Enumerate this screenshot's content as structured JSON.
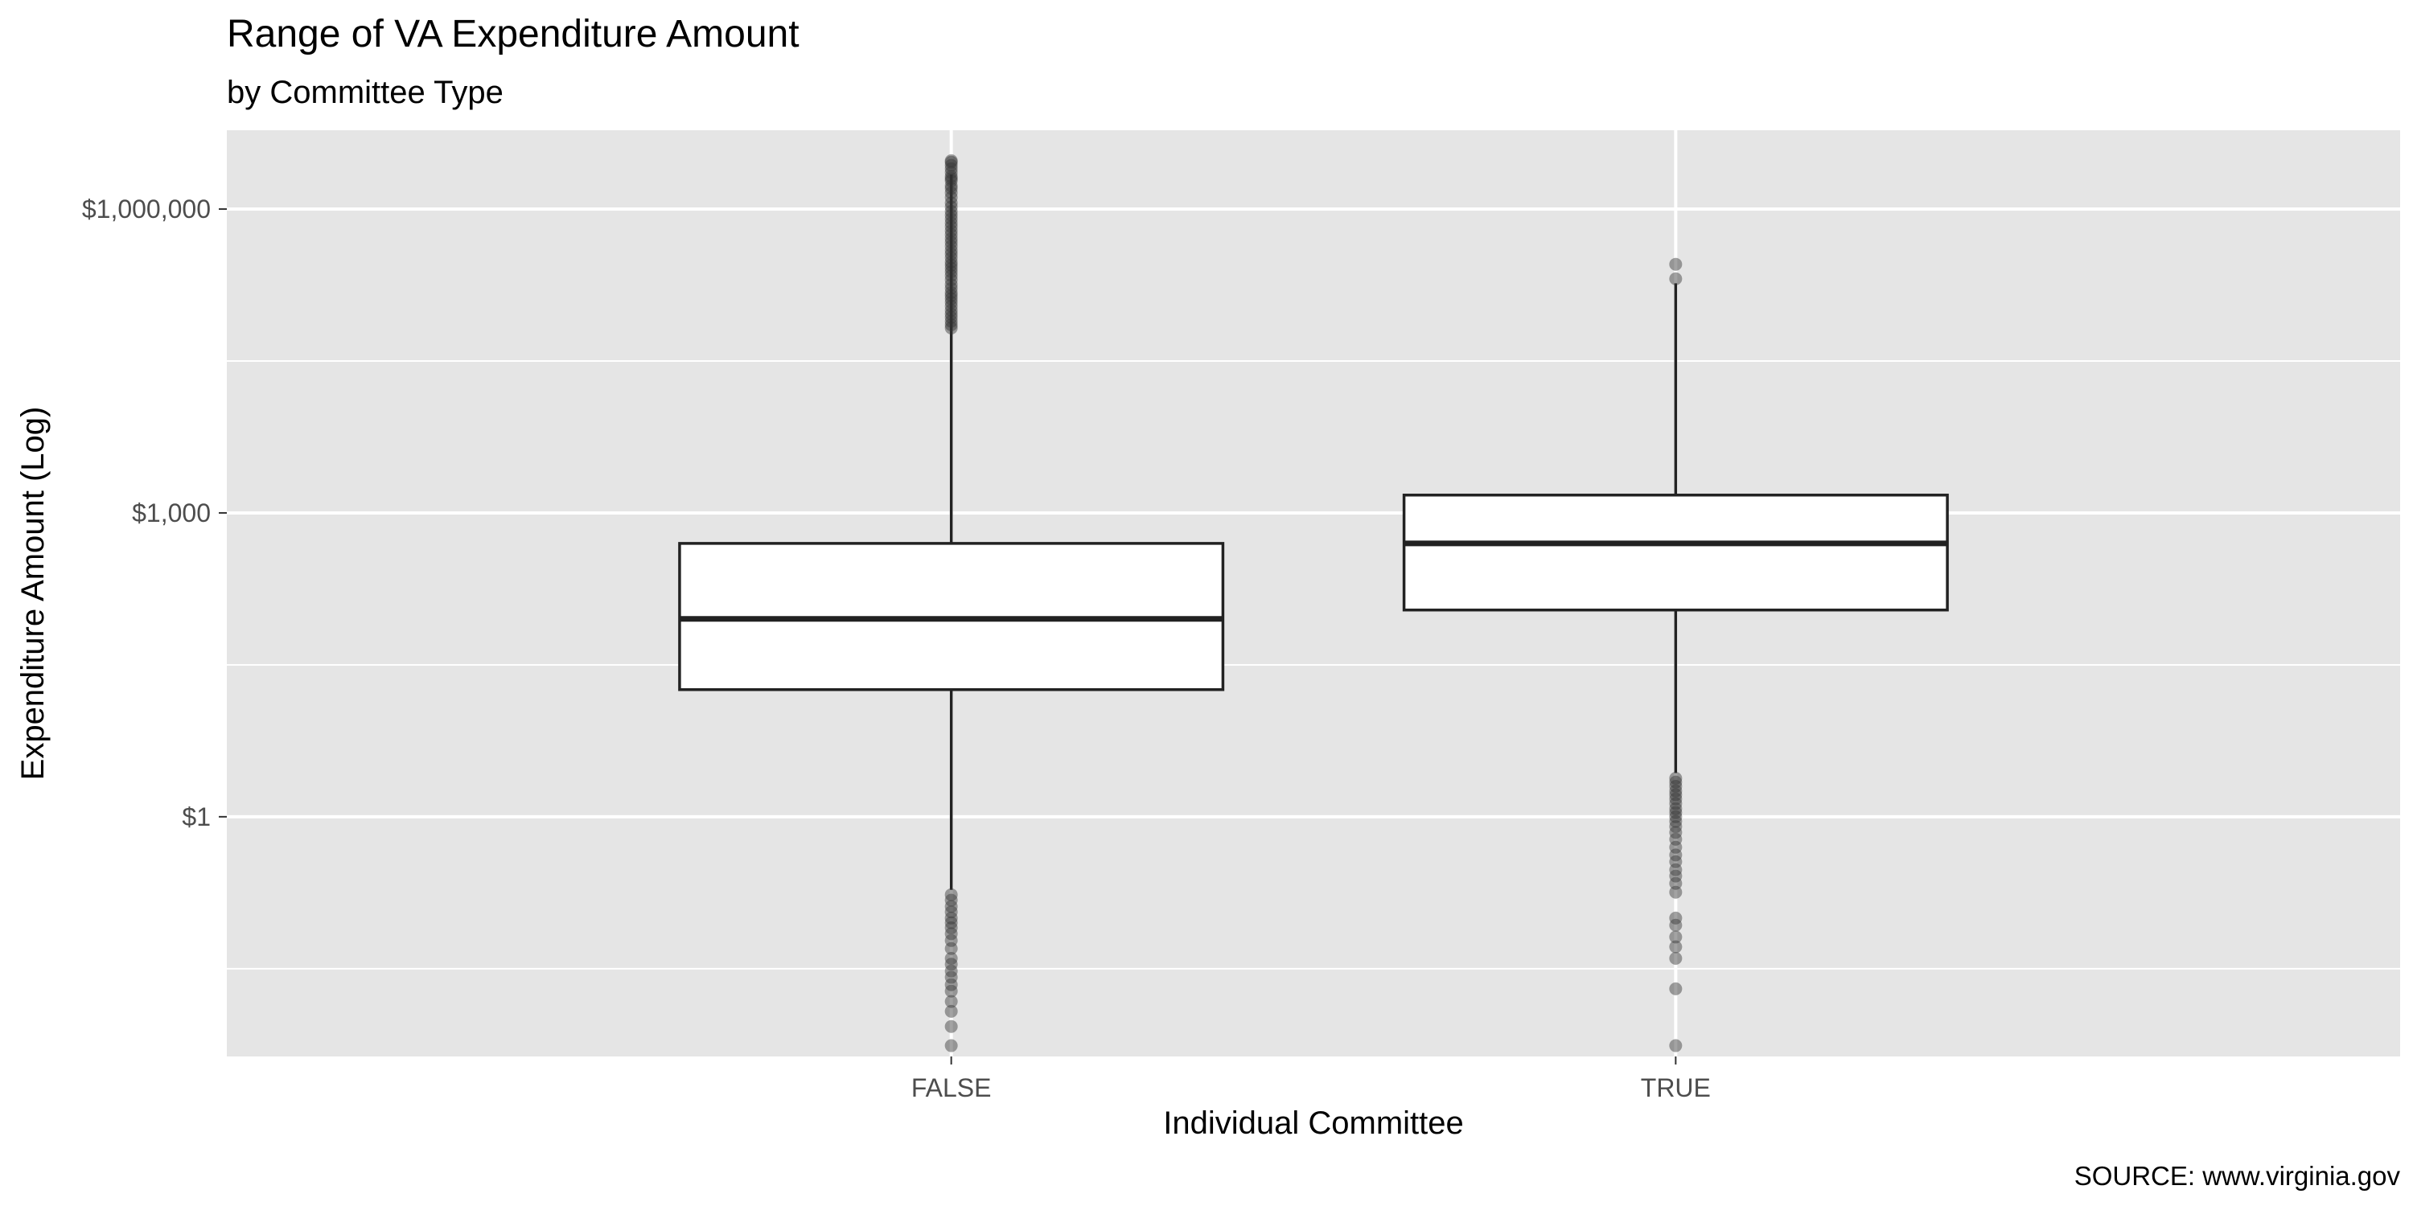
{
  "chart_data": {
    "type": "boxplot",
    "title": "Range of VA Expenditure Amount",
    "subtitle": "by Committee Type",
    "xlabel": "Individual Committee",
    "ylabel": "Expenditure Amount (Log)",
    "caption": "SOURCE: www.virginia.gov",
    "y_scale": "log10",
    "ylim": [
      0.0043,
      6000000
    ],
    "y_ticks": [
      {
        "value": 1,
        "label": "$1"
      },
      {
        "value": 1000,
        "label": "$1,000"
      },
      {
        "value": 1000000,
        "label": "$1,000,000"
      }
    ],
    "y_minor_ticks": [
      0.0316,
      31.6,
      31600
    ],
    "categories": [
      "FALSE",
      "TRUE"
    ],
    "boxes": [
      {
        "category": "FALSE",
        "whisker_low": 0.19,
        "q1": 18,
        "median": 90,
        "q3": 500,
        "whisker_high": 2200000,
        "outliers_high": [
          3000000,
          2900000,
          2700000,
          2500000,
          2300000,
          2100000,
          2000000,
          1900000,
          1700000,
          1600000,
          1450000,
          1300000,
          1150000,
          1050000,
          950000,
          870000,
          800000,
          730000,
          670000,
          610000,
          560000,
          510000,
          470000,
          430000,
          390000,
          360000,
          330000,
          300000,
          280000,
          260000,
          240000,
          220000,
          200000,
          180000,
          165000,
          150000,
          140000,
          130000,
          120000,
          110000,
          100000,
          92000,
          85000,
          78000,
          72000,
          67000
        ],
        "outliers_low": [
          0.17,
          0.15,
          0.13,
          0.115,
          0.1,
          0.09,
          0.08,
          0.07,
          0.06,
          0.05,
          0.04,
          0.035,
          0.03,
          0.026,
          0.022,
          0.019,
          0.015,
          0.012,
          0.0085,
          0.0055
        ]
      },
      {
        "category": "TRUE",
        "whisker_low": 2.7,
        "q1": 110,
        "median": 500,
        "q3": 1500,
        "whisker_high": 185000,
        "outliers_high": [
          285000,
          205000
        ],
        "outliers_low": [
          2.4,
          2.2,
          2.0,
          1.8,
          1.65,
          1.5,
          1.35,
          1.2,
          1.1,
          1.0,
          0.9,
          0.8,
          0.7,
          0.6,
          0.5,
          0.42,
          0.36,
          0.3,
          0.26,
          0.22,
          0.18,
          0.1,
          0.085,
          0.065,
          0.052,
          0.04,
          0.02,
          0.0055
        ]
      }
    ],
    "colors": {
      "panel_background": "#e5e5e5",
      "grid": "#ffffff",
      "box_fill": "#ffffff",
      "box_stroke": "#222222",
      "outlier": "#333333"
    }
  }
}
